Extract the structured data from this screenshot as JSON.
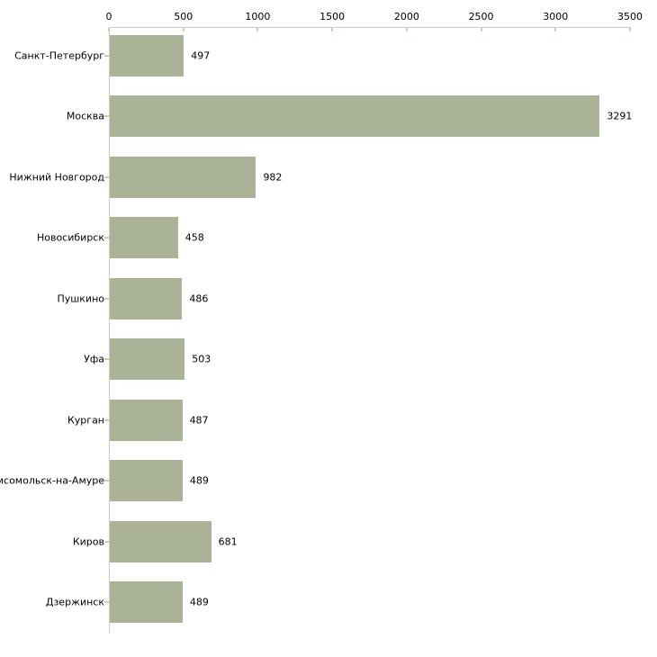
{
  "chart_data": {
    "type": "bar",
    "orientation": "horizontal",
    "categories": [
      "Санкт-Петербург",
      "Москва",
      "Нижний Новгород",
      "Новосибирск",
      "Пушкино",
      "Уфа",
      "Курган",
      "мсомольск-на-Амуре",
      "Киров",
      "Дзержинск"
    ],
    "values": [
      497,
      3291,
      982,
      458,
      486,
      503,
      487,
      489,
      681,
      489
    ],
    "xlim": [
      0,
      3500
    ],
    "x_ticks": [
      0,
      500,
      1000,
      1500,
      2000,
      2500,
      3000,
      3500
    ],
    "grid": false,
    "legend_position": "none",
    "colors": {
      "bar": "#aab398",
      "axis": "#cccccc",
      "tick": "#cfcdaa",
      "text": "#000000",
      "background": "#ffffff"
    }
  }
}
